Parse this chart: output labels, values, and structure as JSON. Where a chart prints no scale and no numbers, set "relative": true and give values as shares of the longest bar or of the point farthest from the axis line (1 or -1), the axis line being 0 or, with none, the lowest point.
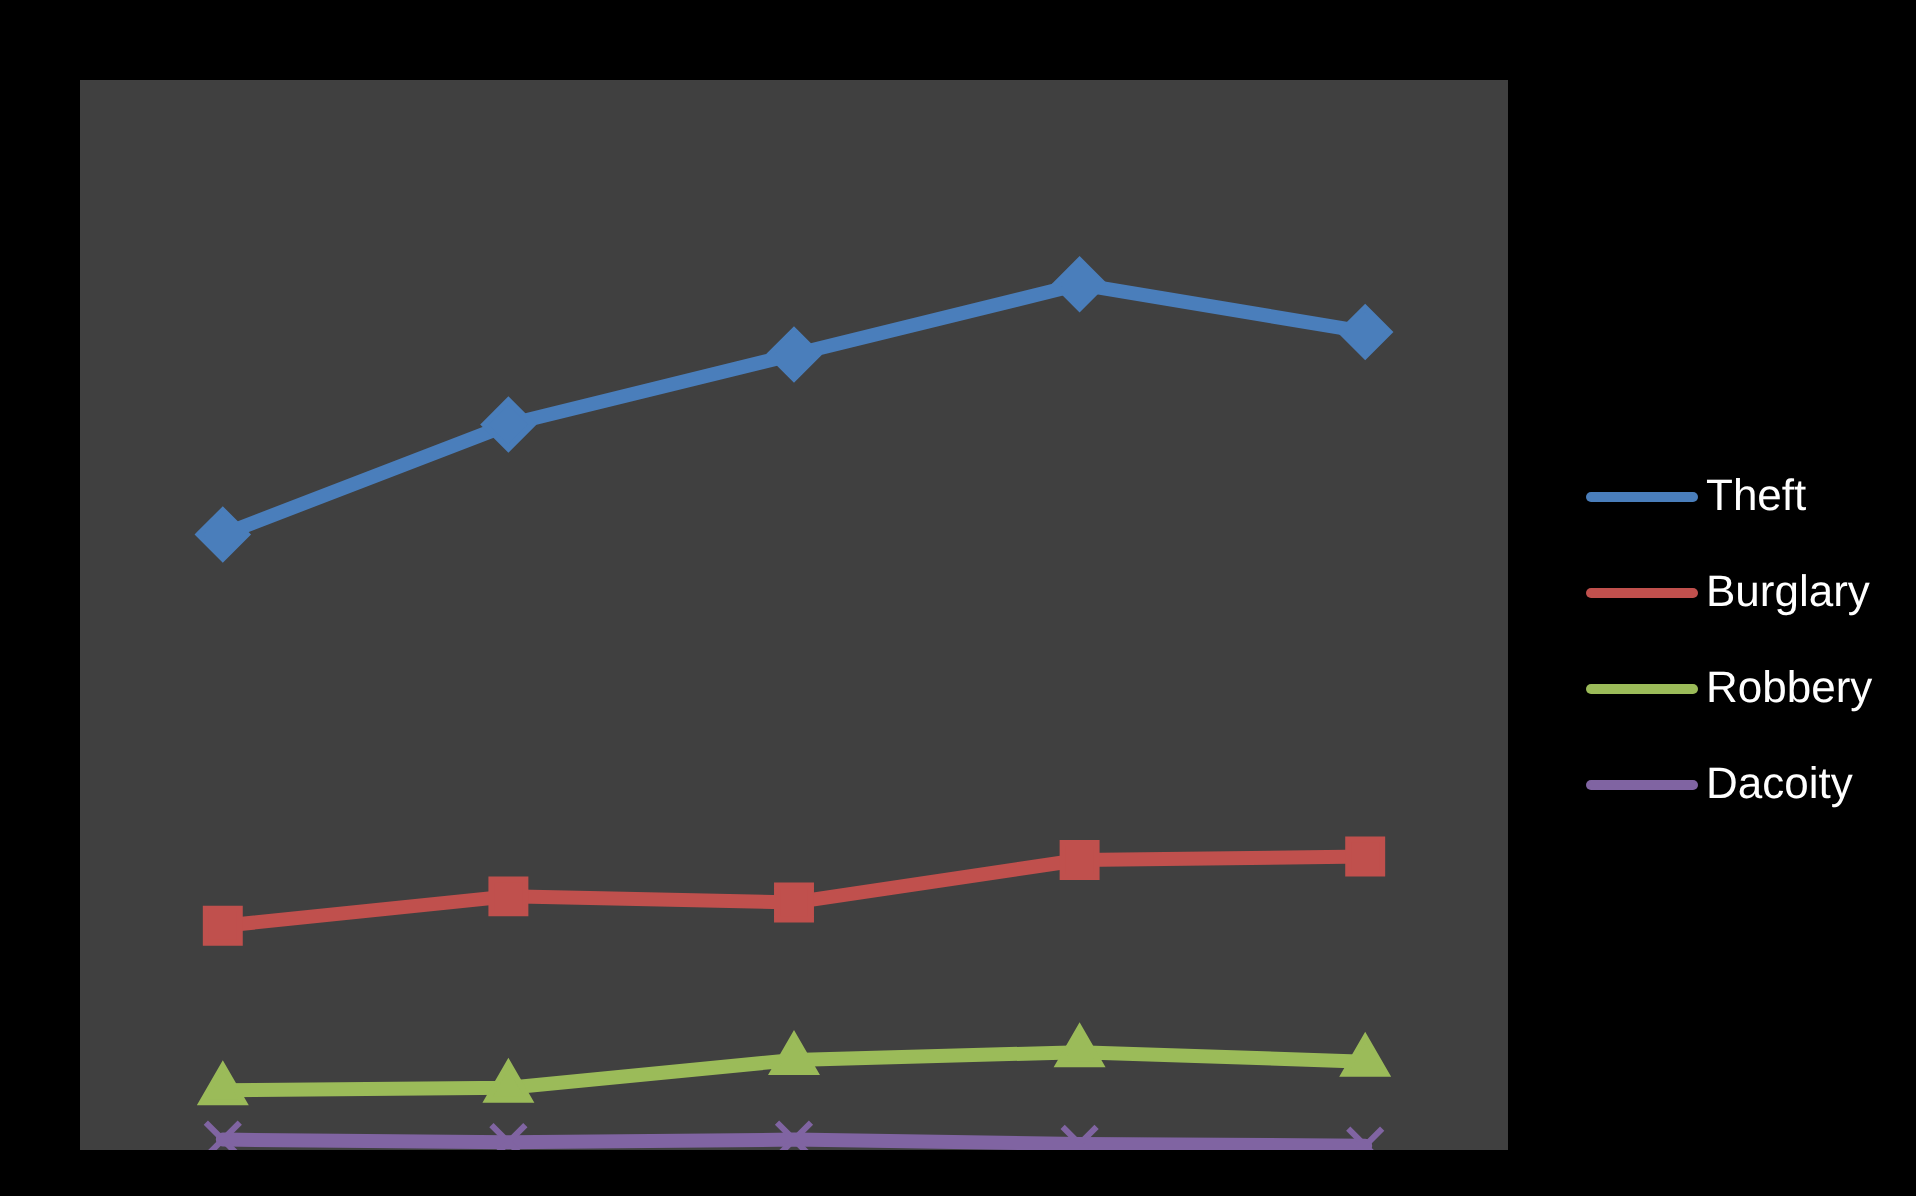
{
  "chart_data": {
    "type": "line",
    "relative": true,
    "categories": [
      null,
      null,
      null,
      null,
      null
    ],
    "legend": "right",
    "series": [
      {
        "name": "Theft",
        "color": "#4a7ebb",
        "marker": "diamond",
        "values": [
          0.711,
          0.838,
          0.919,
          1,
          0.945
        ]
      },
      {
        "name": "Burglary",
        "color": "#c0504d",
        "marker": "square",
        "values": [
          0.259,
          0.293,
          0.286,
          0.335,
          0.339
        ]
      },
      {
        "name": "Robbery",
        "color": "#9bbb59",
        "marker": "triangle",
        "values": [
          0.069,
          0.072,
          0.104,
          0.113,
          0.102
        ]
      },
      {
        "name": "Dacoity",
        "color": "#8064a2",
        "marker": "cross",
        "values": [
          0.012,
          0.009,
          0.012,
          0.007,
          0.005
        ]
      }
    ]
  }
}
